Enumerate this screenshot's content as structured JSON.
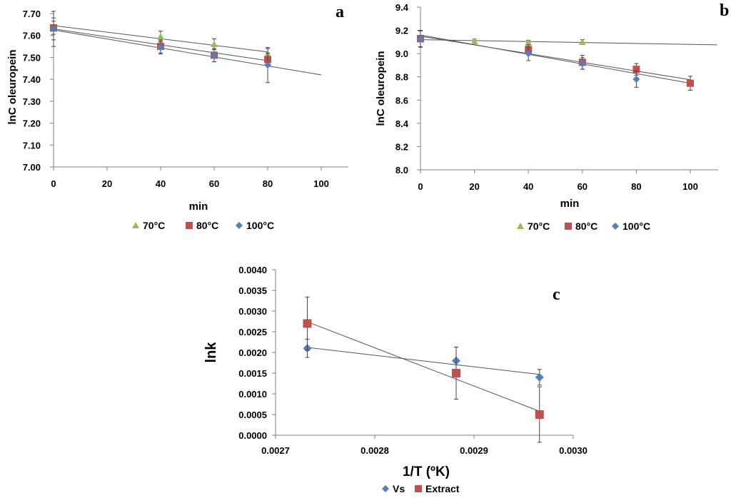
{
  "colors": {
    "green": "#9bbb59",
    "red": "#c0504d",
    "blue": "#4f81bd",
    "axis": "#808080",
    "trend": "#555555"
  },
  "chart_data": [
    {
      "panel": "a",
      "type": "scatter",
      "xlabel": "min",
      "ylabel": "lnC oleuropein",
      "xlim": [
        0,
        110
      ],
      "ylim": [
        7.0,
        7.7
      ],
      "xticks": [
        "0",
        "20",
        "40",
        "60",
        "80",
        "100"
      ],
      "yticks": [
        "7.00",
        "7.10",
        "7.20",
        "7.30",
        "7.40",
        "7.50",
        "7.60",
        "7.70"
      ],
      "grid": false,
      "legend_position": "bottom",
      "series": [
        {
          "name": "70°C",
          "marker": "triangle",
          "color": "#9bbb59",
          "x": [
            0,
            40,
            60,
            80
          ],
          "y": [
            7.63,
            7.595,
            7.56,
            7.515
          ],
          "err": [
            0.05,
            0.025,
            0.025,
            0.025
          ],
          "trend": [
            [
              0,
              7.645
            ],
            [
              80,
              7.525
            ]
          ]
        },
        {
          "name": "80°C",
          "marker": "square",
          "color": "#c0504d",
          "x": [
            0,
            40,
            60,
            80
          ],
          "y": [
            7.635,
            7.55,
            7.51,
            7.49
          ],
          "err": [
            0.03,
            0.03,
            0.03,
            0.03
          ],
          "trend": [
            [
              0,
              7.63
            ],
            [
              80,
              7.485
            ]
          ]
        },
        {
          "name": "100°C",
          "marker": "diamond",
          "color": "#4f81bd",
          "x": [
            0,
            40,
            60,
            80
          ],
          "y": [
            7.63,
            7.545,
            7.51,
            7.465
          ],
          "err": [
            0.08,
            0.03,
            0.03,
            0.08
          ],
          "trend": [
            [
              0,
              7.625
            ],
            [
              100,
              7.42
            ]
          ]
        }
      ]
    },
    {
      "panel": "b",
      "type": "scatter",
      "xlabel": "min",
      "ylabel": "lnC oleuropein",
      "xlim": [
        0,
        110
      ],
      "ylim": [
        8.0,
        9.4
      ],
      "xticks": [
        "0",
        "20",
        "40",
        "60",
        "80",
        "100"
      ],
      "yticks": [
        "8.0",
        "8.2",
        "8.4",
        "8.6",
        "8.8",
        "9.0",
        "9.2",
        "9.4"
      ],
      "grid": false,
      "legend_position": "bottom",
      "series": [
        {
          "name": "70°C",
          "marker": "triangle",
          "color": "#9bbb59",
          "x": [
            0,
            20,
            40,
            60
          ],
          "y": [
            9.12,
            9.105,
            9.095,
            9.1
          ],
          "err": [
            0.02,
            0.02,
            0.02,
            0.02
          ],
          "trend": [
            [
              0,
              9.12
            ],
            [
              110,
              9.075
            ]
          ]
        },
        {
          "name": "80°C",
          "marker": "square",
          "color": "#c0504d",
          "x": [
            0,
            40,
            60,
            80,
            100
          ],
          "y": [
            9.13,
            9.035,
            8.925,
            8.865,
            8.745
          ],
          "err": [
            0.07,
            0.04,
            0.06,
            0.05,
            0.06
          ],
          "trend": [
            [
              0,
              9.16
            ],
            [
              100,
              8.745
            ]
          ]
        },
        {
          "name": "100°C",
          "marker": "diamond",
          "color": "#4f81bd",
          "x": [
            0,
            40,
            60,
            80
          ],
          "y": [
            9.125,
            9.0,
            8.915,
            8.78
          ],
          "err": [
            0.07,
            0.06,
            0.05,
            0.07
          ],
          "trend": [
            [
              0,
              9.15
            ],
            [
              100,
              8.775
            ]
          ]
        }
      ]
    },
    {
      "panel": "c",
      "type": "scatter",
      "xlabel": "1/T (ºK)",
      "ylabel": "lnk",
      "xlim": [
        0.0027,
        0.003
      ],
      "ylim": [
        0.0,
        0.004
      ],
      "xticks": [
        "0.0027",
        "0.0028",
        "0.0029",
        "0.0030"
      ],
      "yticks": [
        "0.0000",
        "0.0005",
        "0.0010",
        "0.0015",
        "0.0020",
        "0.0025",
        "0.0030",
        "0.0035",
        "0.0040"
      ],
      "grid": false,
      "legend_position": "bottom",
      "series": [
        {
          "name": "Vs",
          "marker": "diamond",
          "color": "#4f81bd",
          "x": [
            0.002732,
            0.002882,
            0.002966
          ],
          "y": [
            0.0021,
            0.0018,
            0.0014
          ],
          "err": [
            0.00022,
            0.00033,
            0.00019
          ],
          "trend": [
            [
              0.002732,
              0.00212
            ],
            [
              0.002966,
              0.00147
            ]
          ]
        },
        {
          "name": "Extract",
          "marker": "square",
          "color": "#c0504d",
          "x": [
            0.002732,
            0.002882,
            0.002966
          ],
          "y": [
            0.0027,
            0.0015,
            0.0005
          ],
          "err": [
            0.00064,
            0.00063,
            0.00067
          ],
          "trend": [
            [
              0.002732,
              0.00274
            ],
            [
              0.002966,
              0.00058
            ]
          ]
        }
      ]
    }
  ]
}
